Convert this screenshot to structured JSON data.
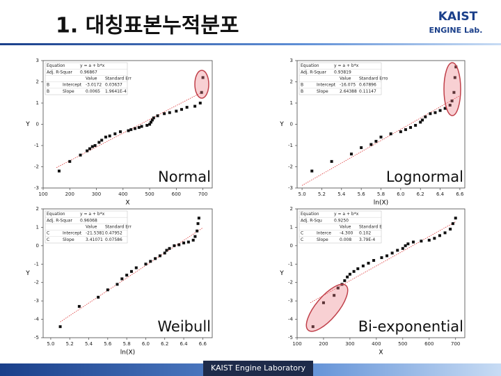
{
  "title": "1. 대칭표본누적분포",
  "logo": {
    "line1": "KAIST",
    "line2": "ENGINE Lab."
  },
  "footer": "KAIST Engine Laboratory",
  "chart_data": [
    {
      "type": "scatter",
      "label": "Normal",
      "xlabel": "X",
      "ylabel": "Y",
      "color": "#111",
      "xlim": [
        100,
        735
      ],
      "xticks": [
        100,
        200,
        300,
        400,
        500,
        600,
        700
      ],
      "ylim": [
        -3,
        3
      ],
      "yticks": [
        -3,
        -2,
        -1,
        0,
        1,
        2,
        3
      ],
      "x": [
        160,
        200,
        240,
        265,
        275,
        285,
        295,
        310,
        320,
        335,
        350,
        370,
        390,
        420,
        430,
        445,
        460,
        470,
        490,
        500,
        505,
        510,
        515,
        530,
        555,
        575,
        600,
        620,
        640,
        670,
        690,
        695,
        700
      ],
      "values": [
        -2.2,
        -1.75,
        -1.45,
        -1.25,
        -1.15,
        -1.05,
        -1.0,
        -0.85,
        -0.75,
        -0.6,
        -0.55,
        -0.45,
        -0.35,
        -0.3,
        -0.25,
        -0.2,
        -0.15,
        -0.1,
        -0.05,
        0.0,
        0.1,
        0.2,
        0.3,
        0.4,
        0.5,
        0.55,
        0.62,
        0.7,
        0.8,
        0.85,
        1.0,
        1.5,
        2.2
      ],
      "trend": {
        "color": "#d33",
        "x": [
          150,
          700
        ],
        "values": [
          -2.04,
          1.53
        ]
      },
      "fit_table": {
        "equation_label": "Equation",
        "equation": "y = a + b*x",
        "r2_label": "Adj. R-Squar",
        "r2": "0.96867",
        "headers": [
          "Value",
          "Standard Err"
        ],
        "rows": [
          [
            "B",
            "Intercept",
            "-3.0172",
            "0.03637"
          ],
          [
            "B",
            "Slope",
            "0.0065",
            "1.9641E-4"
          ]
        ]
      }
    },
    {
      "type": "scatter",
      "label": "Lognormal",
      "xlabel": "ln(X)",
      "ylabel": "Y",
      "color": "#111",
      "xlim": [
        4.95,
        6.65
      ],
      "xticks": [
        {
          "value": 5,
          "label": "5.0"
        },
        5.2,
        5.4,
        5.6,
        5.8,
        {
          "value": 6,
          "label": "6.0"
        },
        6.2,
        6.4,
        6.6
      ],
      "ylim": [
        -3,
        3
      ],
      "yticks": [
        -3,
        -2,
        -1,
        0,
        1,
        2,
        3
      ],
      "x": [
        5.1,
        5.3,
        5.5,
        5.6,
        5.7,
        5.75,
        5.8,
        5.9,
        6.0,
        6.05,
        6.1,
        6.15,
        6.2,
        6.22,
        6.25,
        6.3,
        6.35,
        6.4,
        6.45,
        6.5,
        6.52,
        6.54,
        6.55,
        6.56
      ],
      "values": [
        -2.2,
        -1.75,
        -1.4,
        -1.1,
        -0.95,
        -0.8,
        -0.6,
        -0.45,
        -0.35,
        -0.25,
        -0.15,
        -0.05,
        0.1,
        0.2,
        0.35,
        0.5,
        0.55,
        0.65,
        0.75,
        0.9,
        1.1,
        1.5,
        2.2,
        2.7
      ],
      "trend": {
        "color": "#d33",
        "x": [
          5.0,
          6.6
        ],
        "values": [
          -2.88,
          1.35
        ]
      },
      "fit_table": {
        "equation_label": "Equation",
        "equation": "y = a + b*x",
        "r2_label": "Adj. R-Squar",
        "r2": "0.93819",
        "headers": [
          "Value",
          "Standard Erro"
        ],
        "rows": [
          [
            "B",
            "Intercept",
            "-16.075",
            "0.67896"
          ],
          [
            "B",
            "Slope",
            "2.64388",
            "0.11147"
          ]
        ]
      }
    },
    {
      "type": "scatter",
      "label": "Weibull",
      "xlabel": "ln(X)",
      "ylabel": "Y",
      "color": "#111",
      "xlim": [
        4.92,
        6.7
      ],
      "xticks": [
        {
          "value": 5,
          "label": "5.0"
        },
        5.2,
        5.4,
        5.6,
        5.8,
        {
          "value": 6,
          "label": "6.0"
        },
        6.2,
        6.4,
        6.6
      ],
      "ylim": [
        -5,
        2
      ],
      "yticks": [
        -5,
        -4,
        -3,
        -2,
        -1,
        0,
        1,
        2
      ],
      "x": [
        5.1,
        5.3,
        5.5,
        5.6,
        5.7,
        5.75,
        5.8,
        5.85,
        5.9,
        6.0,
        6.05,
        6.1,
        6.15,
        6.2,
        6.22,
        6.25,
        6.3,
        6.35,
        6.4,
        6.45,
        6.5,
        6.52,
        6.54,
        6.55,
        6.56
      ],
      "values": [
        -4.4,
        -3.3,
        -2.8,
        -2.4,
        -2.1,
        -1.8,
        -1.6,
        -1.4,
        -1.2,
        -1.0,
        -0.85,
        -0.7,
        -0.55,
        -0.4,
        -0.25,
        -0.15,
        0.0,
        0.05,
        0.15,
        0.2,
        0.3,
        0.5,
        0.8,
        1.2,
        1.5
      ],
      "trend": {
        "color": "#d33",
        "x": [
          5.1,
          6.6
        ],
        "values": [
          -4.14,
          0.97
        ]
      },
      "fit_table": {
        "equation_label": "Equation",
        "equation": "y = a + b*x",
        "r2_label": "Adj. R-Squar",
        "r2": "0.96068",
        "headers": [
          "Value",
          "Standard Err"
        ],
        "rows": [
          [
            "C",
            "Intercept",
            "-21.5381",
            "0.47952"
          ],
          [
            "C",
            "Slope",
            "3.41071",
            "0.07586"
          ]
        ]
      }
    },
    {
      "type": "scatter",
      "label": "Bi-exponential",
      "xlabel": "X",
      "ylabel": "Y",
      "color": "#111",
      "xlim": [
        100,
        735
      ],
      "xticks": [
        100,
        200,
        300,
        400,
        500,
        600,
        700
      ],
      "ylim": [
        -5,
        2
      ],
      "yticks": [
        -5,
        -4,
        -3,
        -2,
        -1,
        0,
        1,
        2
      ],
      "x": [
        160,
        200,
        240,
        255,
        270,
        280,
        290,
        300,
        315,
        330,
        350,
        370,
        390,
        420,
        440,
        460,
        480,
        500,
        510,
        520,
        540,
        570,
        600,
        620,
        640,
        660,
        680,
        690,
        700
      ],
      "values": [
        -4.4,
        -3.1,
        -2.7,
        -2.3,
        -2.1,
        -1.9,
        -1.7,
        -1.55,
        -1.4,
        -1.25,
        -1.1,
        -0.95,
        -0.8,
        -0.65,
        -0.55,
        -0.4,
        -0.25,
        -0.15,
        0.0,
        0.1,
        0.2,
        0.25,
        0.3,
        0.4,
        0.55,
        0.7,
        0.9,
        1.2,
        1.5
      ],
      "trend": {
        "color": "#d33",
        "x": [
          150,
          700
        ],
        "values": [
          -3.1,
          1.3
        ]
      },
      "fit_table": {
        "equation_label": "Equation",
        "equation": "y = a + b*x",
        "r2_label": "Adj. R-Squ",
        "r2": "0.9250",
        "headers": [
          "Value",
          "Standard E"
        ],
        "rows": [
          [
            "C",
            "Interce",
            "-4.300",
            "0.102"
          ],
          [
            "C",
            "Slope",
            "0.008",
            "3.79E-4"
          ]
        ]
      }
    }
  ]
}
